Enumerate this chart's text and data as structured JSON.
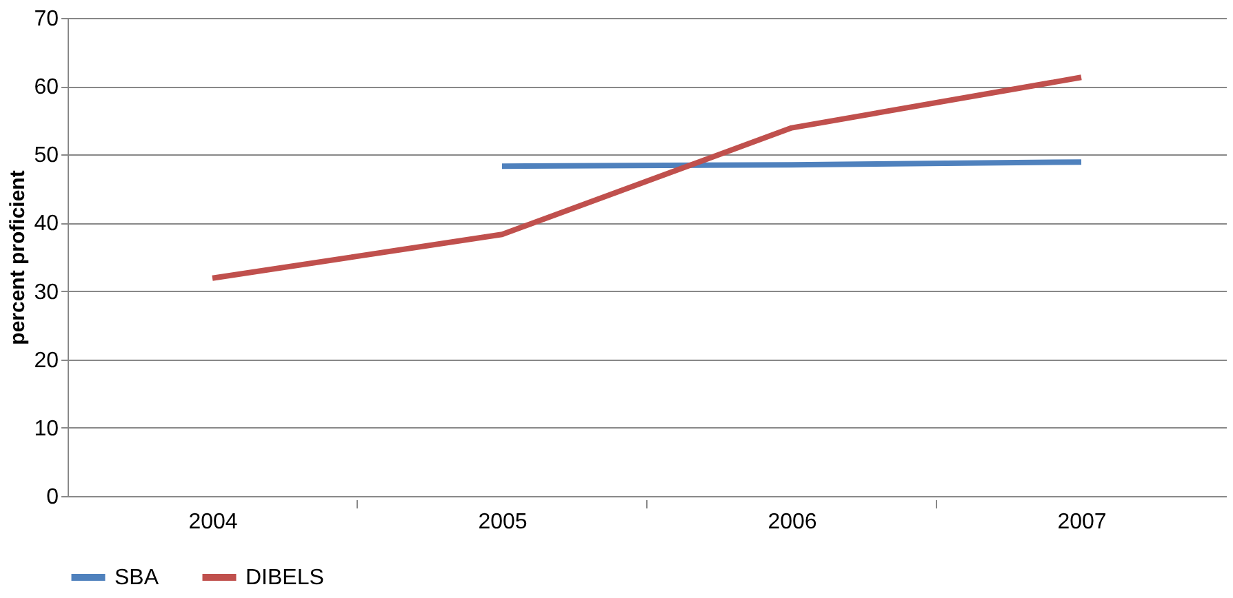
{
  "chart_data": {
    "type": "line",
    "ylabel": "percent proficient",
    "categories": [
      "2004",
      "2005",
      "2006",
      "2007"
    ],
    "series": [
      {
        "name": "SBA",
        "color": "#4f81bd",
        "values": [
          null,
          48.3,
          48.5,
          48.9
        ]
      },
      {
        "name": "DIBELS",
        "color": "#c0504d",
        "values": [
          31.9,
          38.3,
          53.9,
          61.3
        ]
      }
    ],
    "ylim": [
      0,
      70
    ],
    "yticks": [
      0,
      10,
      20,
      30,
      40,
      50,
      60,
      70
    ],
    "grid": "y",
    "legend": "bottom",
    "marker": "none",
    "line_style": "solid"
  }
}
